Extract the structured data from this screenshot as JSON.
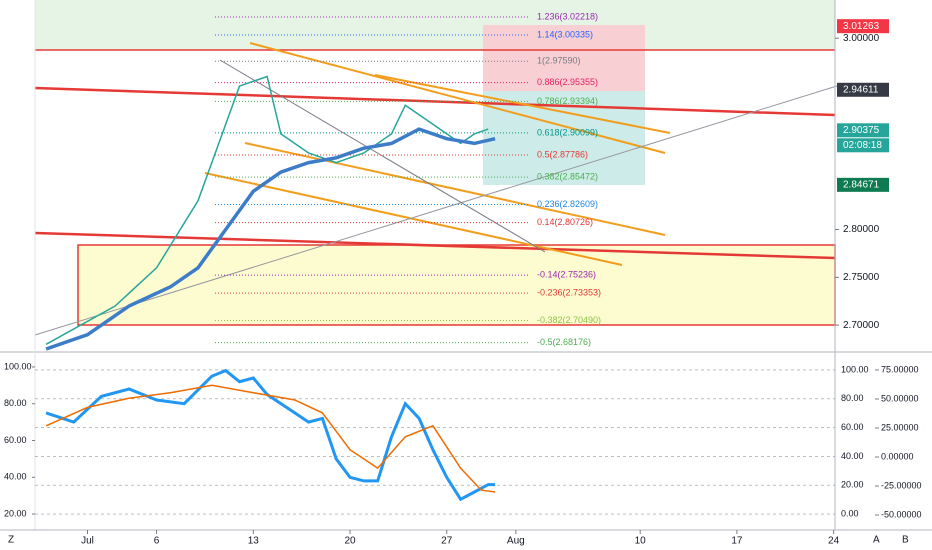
{
  "chart_data": [
    {
      "type": "line",
      "xlim": [
        -3.8,
        54.1
      ],
      "xticks": [
        {
          "value": 0,
          "label": "Jul"
        },
        {
          "value": 5,
          "label": "6"
        },
        {
          "value": 12,
          "label": "13"
        },
        {
          "value": 19,
          "label": "20"
        },
        {
          "value": 26,
          "label": "27"
        },
        {
          "value": 31,
          "label": "Aug"
        },
        {
          "value": 40,
          "label": "10"
        },
        {
          "value": 47,
          "label": "17"
        },
        {
          "value": 54,
          "label": "24"
        }
      ],
      "ylim": [
        2.674,
        3.04
      ],
      "yticks": [
        {
          "value": 2.7,
          "label": "2.70000"
        },
        {
          "value": 2.75,
          "label": "2.75000"
        },
        {
          "value": 2.8,
          "label": "2.80000"
        },
        {
          "value": 3.0,
          "label": "3.00000"
        }
      ],
      "series": [
        {
          "color": "#26a69a",
          "x": [
            -3,
            2,
            5,
            8,
            11,
            13,
            14,
            16,
            18,
            20,
            22,
            23,
            25,
            27,
            28,
            29
          ],
          "values": [
            2.68,
            2.72,
            2.76,
            2.83,
            2.95,
            2.96,
            2.9,
            2.88,
            2.87,
            2.88,
            2.9,
            2.93,
            2.91,
            2.89,
            2.9,
            2.905
          ]
        },
        {
          "color": "#3d7cc9",
          "x": [
            -3,
            0,
            3,
            6,
            8,
            10,
            12,
            14,
            16,
            18,
            20,
            22,
            24,
            26,
            28,
            29.5
          ],
          "values": [
            2.675,
            2.69,
            2.72,
            2.74,
            2.76,
            2.8,
            2.84,
            2.86,
            2.87,
            2.875,
            2.885,
            2.89,
            2.905,
            2.895,
            2.89,
            2.895
          ]
        }
      ],
      "annotations": [
        {
          "label": "1.236(3.02218)",
          "value": 3.02218,
          "color": "#9c27b0"
        },
        {
          "label": "1.14(3.00335)",
          "value": 3.00335,
          "color": "#2962ff"
        },
        {
          "label": "1(2.97590)",
          "value": 2.9759,
          "color": "#787b86"
        },
        {
          "label": "0.886(2.95355)",
          "value": 2.95355,
          "color": "#e91e63"
        },
        {
          "label": "0.786(2.93394)",
          "value": 2.93394,
          "color": "#4caf50"
        },
        {
          "label": "0.618(2.90099)",
          "value": 2.90099,
          "color": "#009688"
        },
        {
          "label": "0.5(2.87786)",
          "value": 2.87786,
          "color": "#e53935"
        },
        {
          "label": "0.382(2.85472)",
          "value": 2.85472,
          "color": "#4caf50"
        },
        {
          "label": "0.236(2.82609)",
          "value": 2.82609,
          "color": "#1e88e5"
        },
        {
          "label": "0.14(2.80726)",
          "value": 2.80726,
          "color": "#e53935"
        },
        {
          "label": "-0.14(2.75236)",
          "value": 2.75236,
          "color": "#9c27b0"
        },
        {
          "label": "-0.236(2.73353)",
          "value": 2.73353,
          "color": "#e53935"
        },
        {
          "label": "-0.382(2.70490)",
          "value": 2.7049,
          "color": "#8bc34a"
        },
        {
          "label": "-0.5(2.68176)",
          "value": 2.68176,
          "color": "#4caf50"
        }
      ],
      "price_labels": [
        {
          "label": "3.01263",
          "value": 3.01263,
          "color": "#f23645"
        },
        {
          "label": "2.94611",
          "value": 2.94611,
          "color": "#363a45"
        },
        {
          "label": "2.90375",
          "value": 2.90375,
          "color": "#26a69a"
        },
        {
          "label": "2.84671",
          "value": 2.84671,
          "color": "#0e7a52"
        }
      ],
      "countdown": "02:08:18"
    },
    {
      "type": "line",
      "xlim": [
        -3.8,
        54.1
      ],
      "ylim": [
        12.4,
        106.5
      ],
      "yticks": [
        {
          "value": 100,
          "label": "100.00"
        },
        {
          "value": 80,
          "label": "80.00"
        },
        {
          "value": 60,
          "label": "60.00"
        },
        {
          "value": 40,
          "label": "40.00"
        },
        {
          "value": 20,
          "label": "20.00"
        }
      ],
      "y2lim": [
        -9.7,
        110.4
      ],
      "y2ticks": [
        {
          "value": 100,
          "label": "100.00"
        },
        {
          "value": 80,
          "label": "80.00"
        },
        {
          "value": 60,
          "label": "60.00"
        },
        {
          "value": 40,
          "label": "40.00"
        },
        {
          "value": 20,
          "label": "20.00"
        },
        {
          "value": 0,
          "label": "0.00"
        }
      ],
      "y3lim": [
        -61.2,
        87.9
      ],
      "y3ticks": [
        {
          "value": 75,
          "label": "75.00000"
        },
        {
          "value": 50,
          "label": "50.00000"
        },
        {
          "value": 25,
          "label": "25.00000"
        },
        {
          "value": 0,
          "label": "0.00000"
        },
        {
          "value": -25,
          "label": "-25.00000"
        },
        {
          "value": -50,
          "label": "-50.00000"
        }
      ],
      "series": [
        {
          "color": "#2196f3",
          "x": [
            -3,
            -1,
            1,
            3,
            5,
            7,
            9,
            10,
            11,
            12,
            13,
            15,
            16,
            17,
            18,
            19,
            20,
            21,
            22,
            23,
            24,
            25,
            26,
            27,
            28,
            29,
            29.5
          ],
          "values": [
            75,
            70,
            84,
            88,
            82,
            80,
            95,
            98,
            92,
            94,
            85,
            75,
            70,
            72,
            50,
            40,
            38,
            38,
            62,
            80,
            72,
            55,
            40,
            28,
            32,
            36,
            36
          ]
        },
        {
          "color": "#ef6c00",
          "x": [
            -3,
            0,
            3,
            6,
            9,
            12,
            15,
            17,
            19,
            21,
            23,
            25,
            27,
            28.5,
            29.5
          ],
          "values": [
            68,
            78,
            83,
            86,
            90,
            86,
            82,
            75,
            55,
            45,
            62,
            68,
            45,
            33,
            32
          ]
        }
      ]
    }
  ],
  "toolbar": {
    "left": "Z",
    "auto": "A",
    "other": "B"
  }
}
